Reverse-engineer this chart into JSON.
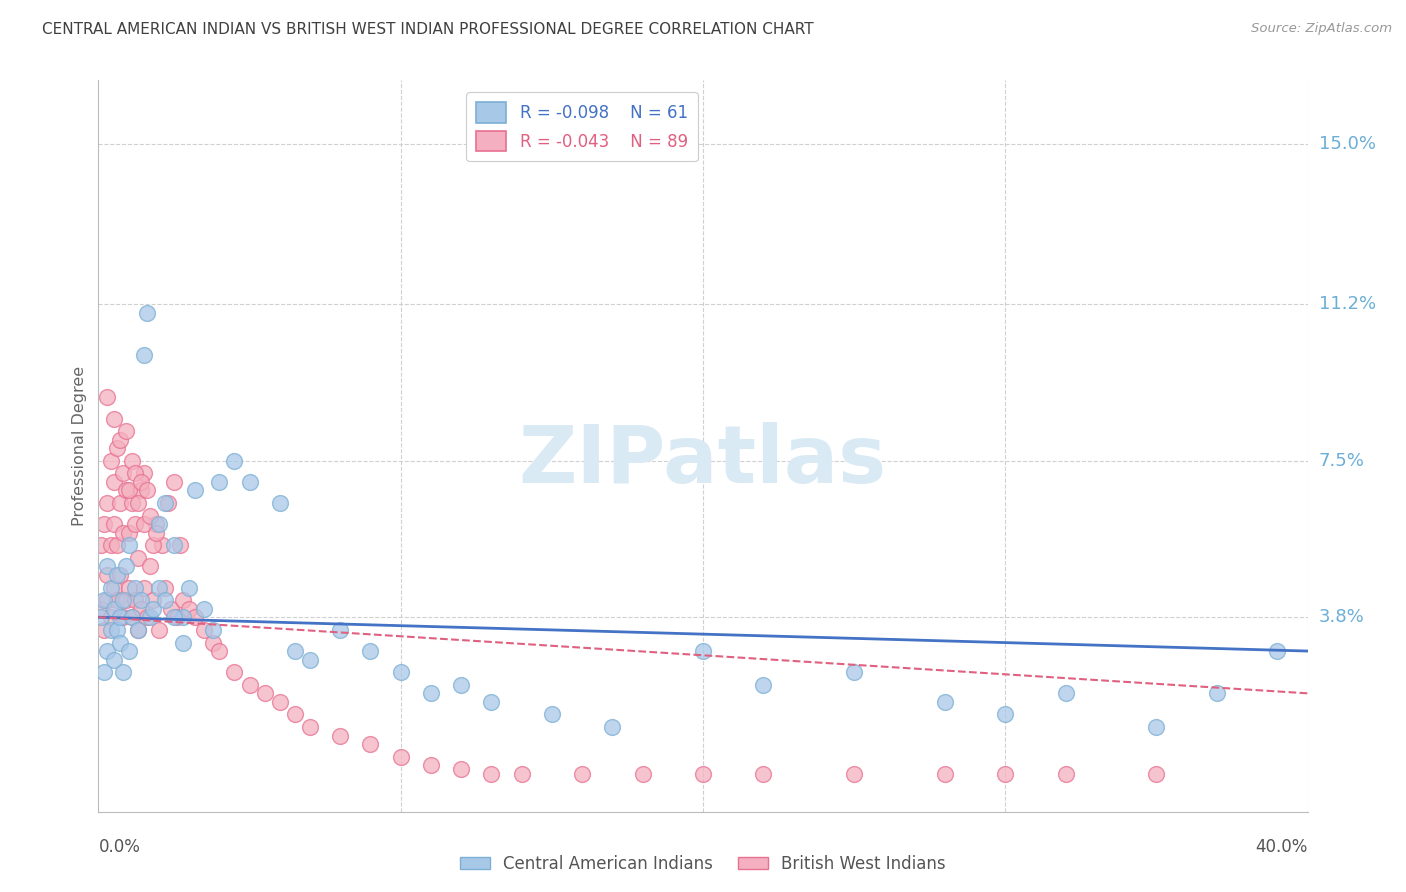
{
  "title": "CENTRAL AMERICAN INDIAN VS BRITISH WEST INDIAN PROFESSIONAL DEGREE CORRELATION CHART",
  "source": "Source: ZipAtlas.com",
  "ylabel": "Professional Degree",
  "xmin": 0.0,
  "xmax": 0.4,
  "ymin": -0.008,
  "ymax": 0.165,
  "ytick_vals": [
    0.038,
    0.075,
    0.112,
    0.15
  ],
  "ytick_labels": [
    "3.8%",
    "7.5%",
    "11.2%",
    "15.0%"
  ],
  "legend_r1": "R = -0.098",
  "legend_n1": "N = 61",
  "legend_r2": "R = -0.043",
  "legend_n2": "N = 89",
  "series1_color": "#a8c8e8",
  "series1_edge": "#7bafd4",
  "series2_color": "#f4b0c0",
  "series2_edge": "#e87090",
  "trendline1_color": "#4472c4",
  "trendline2_color": "#e06080",
  "watermark": "ZIPatlas",
  "watermark_color": "#daeaf5",
  "grid_color": "#d0d0d0",
  "background_color": "#ffffff",
  "series1_x": [
    0.001,
    0.002,
    0.002,
    0.003,
    0.003,
    0.004,
    0.004,
    0.005,
    0.005,
    0.006,
    0.006,
    0.007,
    0.007,
    0.008,
    0.008,
    0.009,
    0.01,
    0.01,
    0.011,
    0.012,
    0.013,
    0.014,
    0.015,
    0.016,
    0.017,
    0.018,
    0.02,
    0.022,
    0.025,
    0.028,
    0.03,
    0.032,
    0.035,
    0.038,
    0.04,
    0.045,
    0.05,
    0.06,
    0.065,
    0.07,
    0.08,
    0.09,
    0.1,
    0.11,
    0.12,
    0.13,
    0.15,
    0.17,
    0.2,
    0.22,
    0.25,
    0.28,
    0.3,
    0.32,
    0.35,
    0.37,
    0.39,
    0.02,
    0.022,
    0.025,
    0.028
  ],
  "series1_y": [
    0.038,
    0.025,
    0.042,
    0.03,
    0.05,
    0.035,
    0.045,
    0.04,
    0.028,
    0.035,
    0.048,
    0.032,
    0.038,
    0.042,
    0.025,
    0.05,
    0.055,
    0.03,
    0.038,
    0.045,
    0.035,
    0.042,
    0.1,
    0.11,
    0.038,
    0.04,
    0.06,
    0.065,
    0.055,
    0.038,
    0.045,
    0.068,
    0.04,
    0.035,
    0.07,
    0.075,
    0.07,
    0.065,
    0.03,
    0.028,
    0.035,
    0.03,
    0.025,
    0.02,
    0.022,
    0.018,
    0.015,
    0.012,
    0.03,
    0.022,
    0.025,
    0.018,
    0.015,
    0.02,
    0.012,
    0.02,
    0.03,
    0.045,
    0.042,
    0.038,
    0.032
  ],
  "series2_x": [
    0.001,
    0.001,
    0.002,
    0.002,
    0.003,
    0.003,
    0.003,
    0.004,
    0.004,
    0.005,
    0.005,
    0.005,
    0.006,
    0.006,
    0.007,
    0.007,
    0.008,
    0.008,
    0.009,
    0.009,
    0.01,
    0.01,
    0.011,
    0.011,
    0.012,
    0.012,
    0.013,
    0.013,
    0.014,
    0.014,
    0.015,
    0.015,
    0.016,
    0.017,
    0.018,
    0.019,
    0.02,
    0.021,
    0.022,
    0.023,
    0.024,
    0.025,
    0.026,
    0.027,
    0.028,
    0.03,
    0.032,
    0.035,
    0.038,
    0.04,
    0.045,
    0.05,
    0.055,
    0.06,
    0.065,
    0.07,
    0.08,
    0.09,
    0.1,
    0.11,
    0.12,
    0.13,
    0.14,
    0.16,
    0.18,
    0.2,
    0.22,
    0.25,
    0.28,
    0.3,
    0.32,
    0.35,
    0.003,
    0.004,
    0.005,
    0.006,
    0.007,
    0.008,
    0.009,
    0.01,
    0.011,
    0.012,
    0.013,
    0.014,
    0.015,
    0.016,
    0.017,
    0.018,
    0.019
  ],
  "series2_y": [
    0.04,
    0.055,
    0.035,
    0.06,
    0.042,
    0.065,
    0.048,
    0.038,
    0.055,
    0.045,
    0.06,
    0.07,
    0.042,
    0.055,
    0.048,
    0.065,
    0.038,
    0.058,
    0.042,
    0.068,
    0.045,
    0.058,
    0.038,
    0.065,
    0.042,
    0.06,
    0.035,
    0.052,
    0.04,
    0.068,
    0.045,
    0.072,
    0.038,
    0.05,
    0.042,
    0.06,
    0.035,
    0.055,
    0.045,
    0.065,
    0.04,
    0.07,
    0.038,
    0.055,
    0.042,
    0.04,
    0.038,
    0.035,
    0.032,
    0.03,
    0.025,
    0.022,
    0.02,
    0.018,
    0.015,
    0.012,
    0.01,
    0.008,
    0.005,
    0.003,
    0.002,
    0.001,
    0.001,
    0.001,
    0.001,
    0.001,
    0.001,
    0.001,
    0.001,
    0.001,
    0.001,
    0.001,
    0.09,
    0.075,
    0.085,
    0.078,
    0.08,
    0.072,
    0.082,
    0.068,
    0.075,
    0.072,
    0.065,
    0.07,
    0.06,
    0.068,
    0.062,
    0.055,
    0.058
  ]
}
